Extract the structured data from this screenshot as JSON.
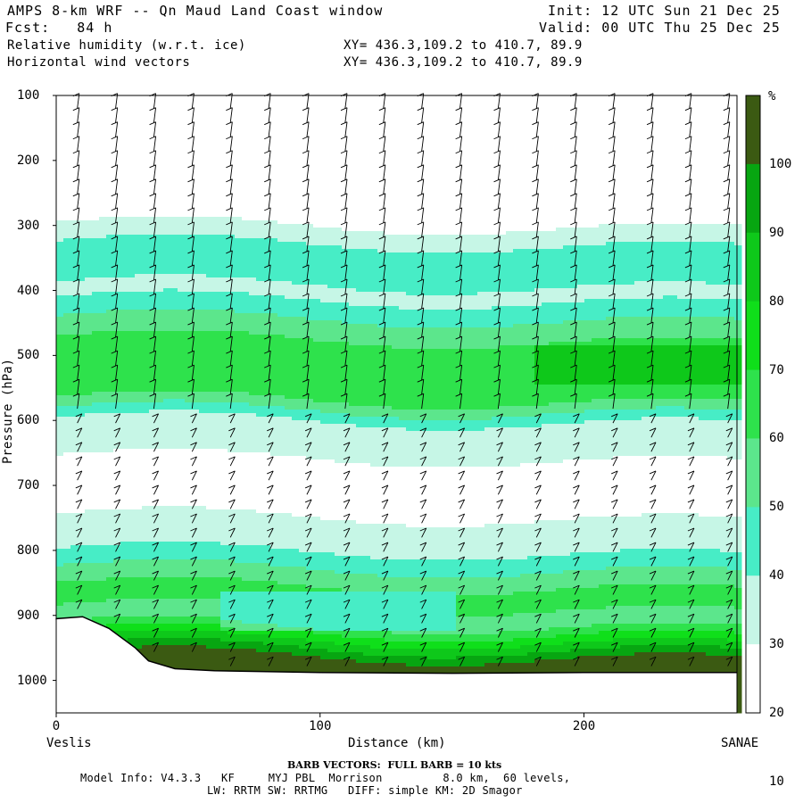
{
  "header": {
    "title": "AMPS 8-km WRF -- Qn Maud Land Coast window",
    "init": "Init: 12 UTC Sun 21 Dec 25",
    "fcst": "Fcst:   84 h",
    "valid": "Valid: 00 UTC Thu 25 Dec 25",
    "field1": "Relative humidity (w.r.t. ice)",
    "field2": "Horizontal wind vectors",
    "xy1": "XY= 436.3,109.2 to 410.7, 89.9",
    "xy2": "XY= 436.3,109.2 to 410.7, 89.9"
  },
  "footer": {
    "barb_note": "BARB VECTORS:  FULL BARB = 10 kts",
    "model_info": "Model Info: V4.3.3   KF     MYJ PBL  Morrison         8.0 km,  60 levels,",
    "model_info2": "LW: RRTM SW: RRTMG   DIFF: simple KM: 2D Smagor"
  },
  "chart_data": {
    "type": "heatmap",
    "title": "Relative humidity (w.r.t. ice)",
    "xlabel": "Distance (km)",
    "ylabel": "Pressure (hPa)",
    "x_ticks": [
      "0",
      "100",
      "200"
    ],
    "y_ticks": [
      "100",
      "200",
      "300",
      "400",
      "500",
      "600",
      "700",
      "800",
      "900",
      "1000"
    ],
    "xlim": [
      0,
      258
    ],
    "ylim": [
      1050,
      100
    ],
    "x_end_labels": {
      "left": "Veslis",
      "right": "SANAE"
    },
    "colorbar": {
      "unit": "%",
      "labels": [
        "100",
        "90",
        "80",
        "70",
        "60",
        "50",
        "40",
        "30",
        "20",
        "10"
      ],
      "levels": [
        {
          "min": 0,
          "max": 30,
          "color": "#ffffff"
        },
        {
          "min": 30,
          "max": 40,
          "color": "#c6f6e6"
        },
        {
          "min": 40,
          "max": 50,
          "color": "#47edc6"
        },
        {
          "min": 50,
          "max": 60,
          "color": "#5ce68c"
        },
        {
          "min": 60,
          "max": 70,
          "color": "#2ee24c"
        },
        {
          "min": 70,
          "max": 80,
          "color": "#0fdf1a"
        },
        {
          "min": 80,
          "max": 90,
          "color": "#0ec81a"
        },
        {
          "min": 90,
          "max": 100,
          "color": "#07a611"
        },
        {
          "min": 100,
          "max": 110,
          "color": "#3b5a12"
        }
      ]
    },
    "rh_profile": [
      {
        "p": 100,
        "rh": 5
      },
      {
        "p": 200,
        "rh": 8
      },
      {
        "p": 275,
        "rh": 20
      },
      {
        "p": 300,
        "rh": 35
      },
      {
        "p": 340,
        "rh": 45
      },
      {
        "p": 400,
        "rh": 38
      },
      {
        "p": 450,
        "rh": 55
      },
      {
        "p": 500,
        "rh": 70
      },
      {
        "p": 560,
        "rh": 60
      },
      {
        "p": 600,
        "rh": 35
      },
      {
        "p": 700,
        "rh": 25
      },
      {
        "p": 780,
        "rh": 35
      },
      {
        "p": 820,
        "rh": 50
      },
      {
        "p": 860,
        "rh": 65
      },
      {
        "p": 900,
        "rh": 55
      },
      {
        "p": 930,
        "rh": 80
      },
      {
        "p": 960,
        "rh": 105
      }
    ],
    "terrain": [
      {
        "x": 0,
        "p": 905
      },
      {
        "x": 10,
        "p": 902
      },
      {
        "x": 20,
        "p": 920
      },
      {
        "x": 30,
        "p": 950
      },
      {
        "x": 35,
        "p": 970
      },
      {
        "x": 45,
        "p": 982
      },
      {
        "x": 60,
        "p": 985
      },
      {
        "x": 100,
        "p": 988
      },
      {
        "x": 150,
        "p": 989
      },
      {
        "x": 200,
        "p": 988
      },
      {
        "x": 258,
        "p": 988
      }
    ]
  }
}
